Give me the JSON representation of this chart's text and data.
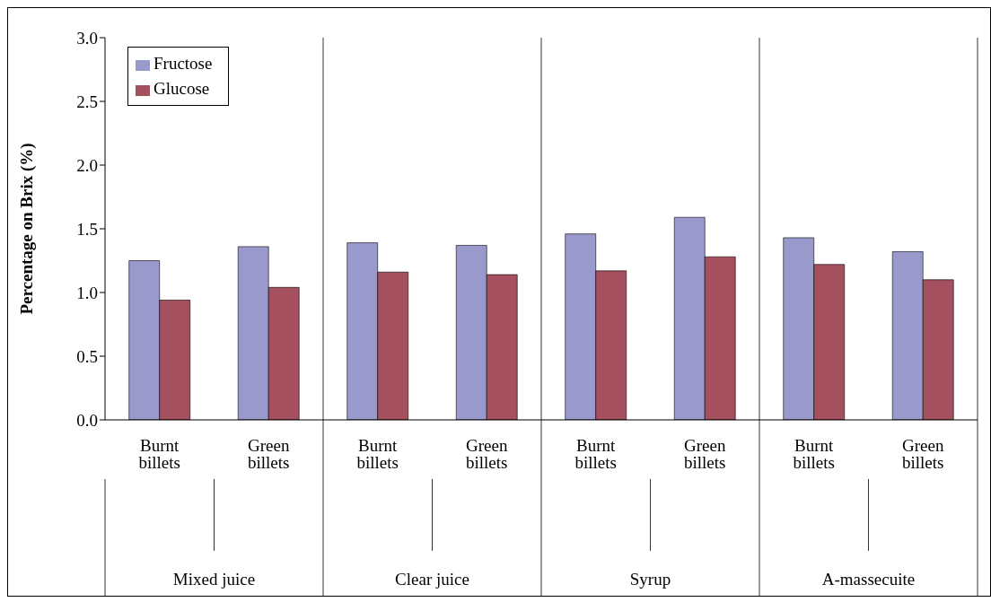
{
  "chart_data": {
    "type": "bar",
    "ylabel": "Percentage on Brix (%)",
    "categories": [
      "Burnt billets",
      "Green billets",
      "Burnt billets",
      "Green billets",
      "Burnt billets",
      "Green billets",
      "Burnt billets",
      "Green billets"
    ],
    "annotations": [
      "Mixed juice",
      "Clear juice",
      "Syrup",
      "A-massecuite"
    ],
    "series": [
      {
        "name": "Fructose",
        "color": "#9999cc",
        "values": [
          1.25,
          1.36,
          1.39,
          1.37,
          1.46,
          1.59,
          1.43,
          1.32
        ]
      },
      {
        "name": "Glucose",
        "color": "#a5505f",
        "values": [
          0.94,
          1.04,
          1.16,
          1.14,
          1.17,
          1.28,
          1.22,
          1.1
        ]
      }
    ],
    "ylim": [
      0,
      3
    ],
    "yticks": [
      {
        "value": 0,
        "label": "0.0"
      },
      {
        "value": 0.5,
        "label": "0.5"
      },
      {
        "value": 1,
        "label": "1.0"
      },
      {
        "value": 1.5,
        "label": "1.5"
      },
      {
        "value": 2,
        "label": "2.0"
      },
      {
        "value": 2.5,
        "label": "2.5"
      },
      {
        "value": 3,
        "label": "3.0"
      }
    ],
    "grid": false,
    "legend": "top left"
  }
}
